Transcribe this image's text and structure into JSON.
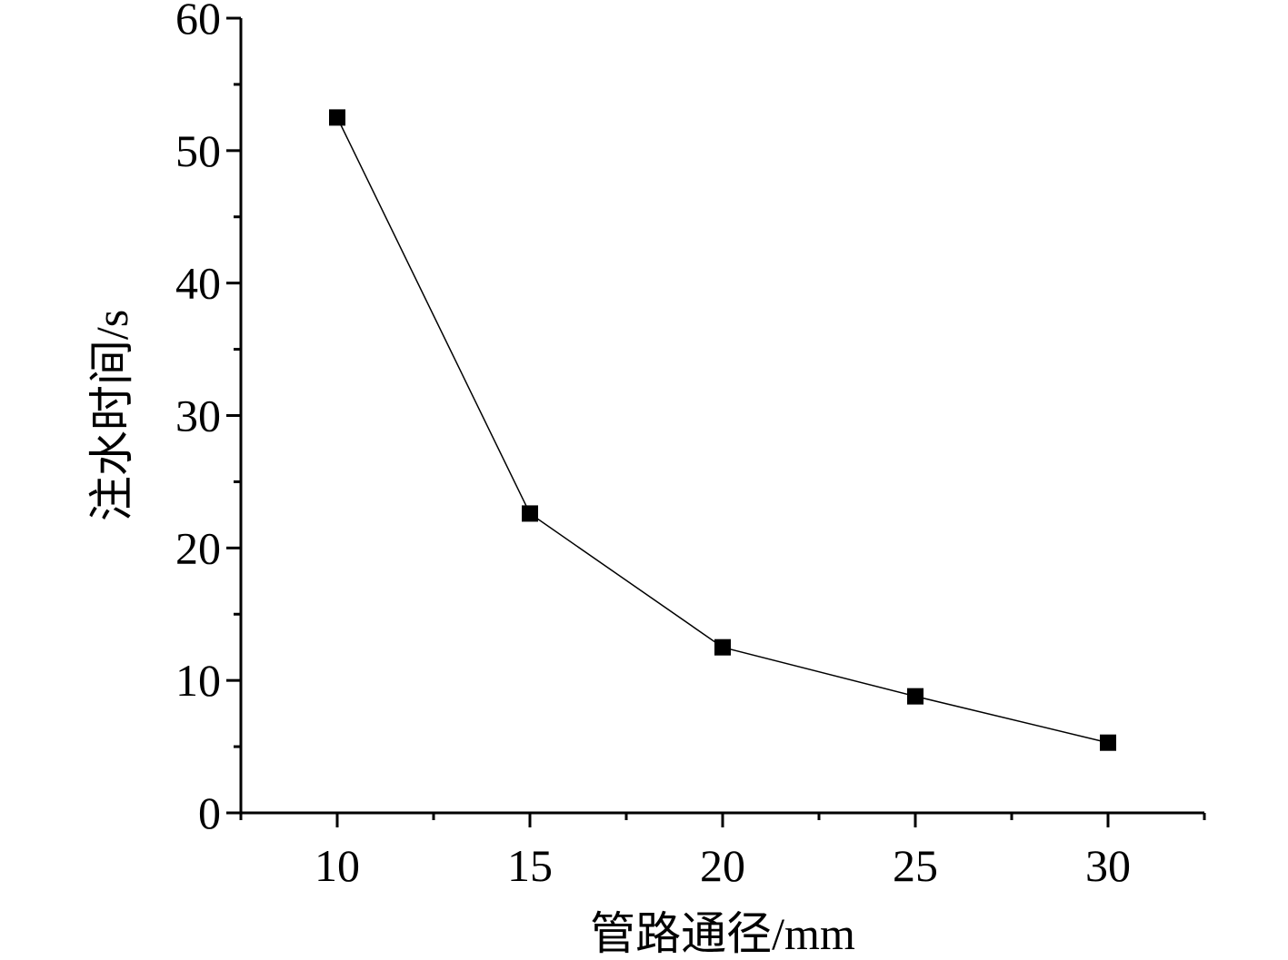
{
  "chart_data": {
    "type": "line",
    "x": [
      10,
      15,
      20,
      25,
      30
    ],
    "series": [
      {
        "values": [
          52.5,
          22.6,
          12.5,
          8.8,
          5.3
        ]
      }
    ],
    "xlabel": "管路通径/mm",
    "ylabel": "注水时间/s",
    "xlim": [
      7.5,
      32.5
    ],
    "ylim": [
      0,
      60
    ],
    "x_ticks": [
      "10",
      "15",
      "20",
      "25",
      "30"
    ],
    "y_ticks": [
      "0",
      "10",
      "20",
      "30",
      "40",
      "50",
      "60"
    ],
    "marker": "square",
    "grid": false,
    "legend": "none",
    "colors": {
      "line": "#000000",
      "marker": "#000000",
      "axis": "#000000"
    }
  }
}
